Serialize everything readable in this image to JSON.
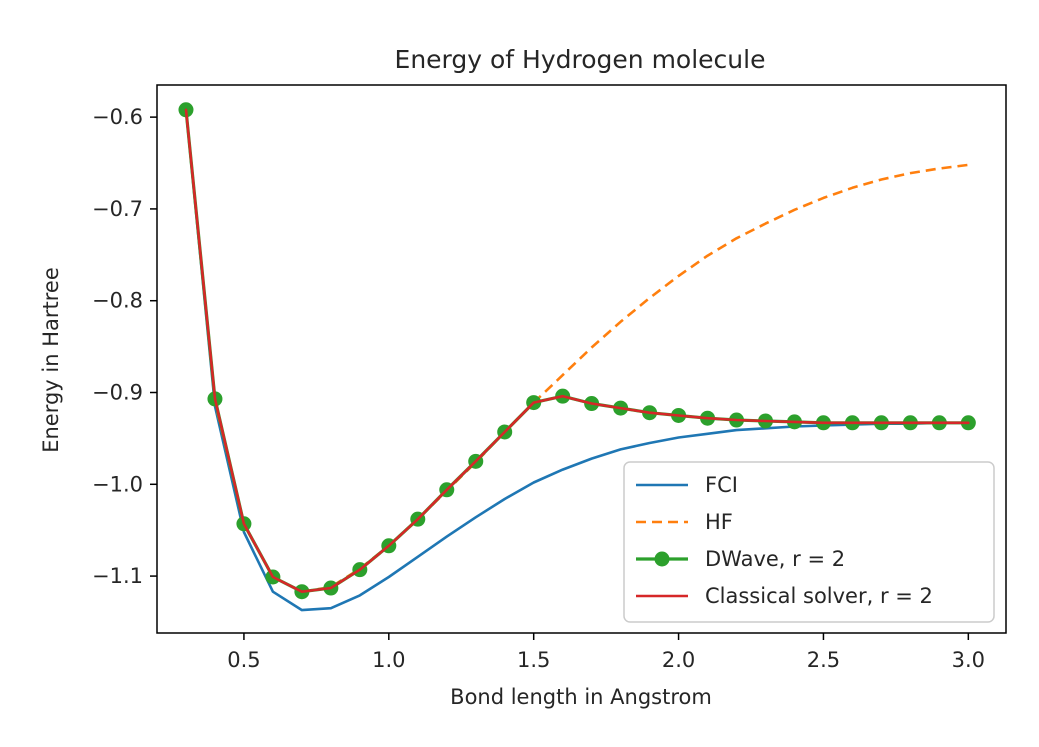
{
  "chart_data": {
    "type": "line",
    "title": "Energy of Hydrogen molecule",
    "xlabel": "Bond length in Angstrom",
    "ylabel": "Energy in Hartree",
    "xlim": [
      0.2,
      3.13
    ],
    "ylim": [
      -1.162,
      -0.565
    ],
    "xticks": [
      0.5,
      1.0,
      1.5,
      2.0,
      2.5,
      3.0
    ],
    "xtick_labels": [
      "0.5",
      "1.0",
      "1.5",
      "2.0",
      "2.5",
      "3.0"
    ],
    "yticks": [
      -0.6,
      -0.7,
      -0.8,
      -0.9,
      -1.0,
      -1.1
    ],
    "ytick_labels": [
      "−0.6",
      "−0.7",
      "−0.8",
      "−0.9",
      "−1.0",
      "−1.1"
    ],
    "grid": false,
    "legend_position": "lower-right",
    "x": [
      0.3,
      0.4,
      0.5,
      0.6,
      0.7,
      0.8,
      0.9,
      1.0,
      1.1,
      1.2,
      1.3,
      1.4,
      1.5,
      1.6,
      1.7,
      1.8,
      1.9,
      2.0,
      2.1,
      2.2,
      2.3,
      2.4,
      2.5,
      2.6,
      2.7,
      2.8,
      2.9,
      3.0
    ],
    "series": [
      {
        "name": "FCI",
        "color": "#1f77b4",
        "style": "solid",
        "values": [
          -0.592,
          -0.915,
          -1.052,
          -1.117,
          -1.137,
          -1.135,
          -1.121,
          -1.101,
          -1.079,
          -1.057,
          -1.036,
          -1.016,
          -0.998,
          -0.984,
          -0.972,
          -0.962,
          -0.955,
          -0.949,
          -0.945,
          -0.941,
          -0.939,
          -0.937,
          -0.936,
          -0.935,
          -0.934,
          -0.934,
          -0.933,
          -0.933
        ]
      },
      {
        "name": "HF",
        "color": "#ff7f0e",
        "style": "dashed",
        "values": [
          -0.592,
          -0.91,
          -1.043,
          -1.101,
          -1.117,
          -1.112,
          -1.092,
          -1.067,
          -1.038,
          -1.007,
          -0.976,
          -0.943,
          -0.911,
          -0.881,
          -0.851,
          -0.823,
          -0.797,
          -0.773,
          -0.751,
          -0.732,
          -0.716,
          -0.701,
          -0.688,
          -0.677,
          -0.668,
          -0.661,
          -0.656,
          -0.652
        ]
      },
      {
        "name": "DWave, r = 2",
        "color": "#2ca02c",
        "style": "solid-markers",
        "values": [
          -0.592,
          -0.907,
          -1.043,
          -1.101,
          -1.117,
          -1.113,
          -1.093,
          -1.067,
          -1.038,
          -1.006,
          -0.975,
          -0.943,
          -0.911,
          -0.904,
          -0.912,
          -0.917,
          -0.922,
          -0.925,
          -0.928,
          -0.93,
          -0.931,
          -0.932,
          -0.933,
          -0.933,
          -0.933,
          -0.933,
          -0.933,
          -0.933
        ]
      },
      {
        "name": "Classical solver, r = 2",
        "color": "#d62728",
        "style": "solid",
        "values": [
          -0.592,
          -0.907,
          -1.043,
          -1.101,
          -1.117,
          -1.113,
          -1.093,
          -1.067,
          -1.038,
          -1.006,
          -0.975,
          -0.943,
          -0.911,
          -0.904,
          -0.912,
          -0.917,
          -0.922,
          -0.925,
          -0.928,
          -0.93,
          -0.931,
          -0.932,
          -0.933,
          -0.933,
          -0.933,
          -0.933,
          -0.933,
          -0.933
        ]
      }
    ]
  }
}
